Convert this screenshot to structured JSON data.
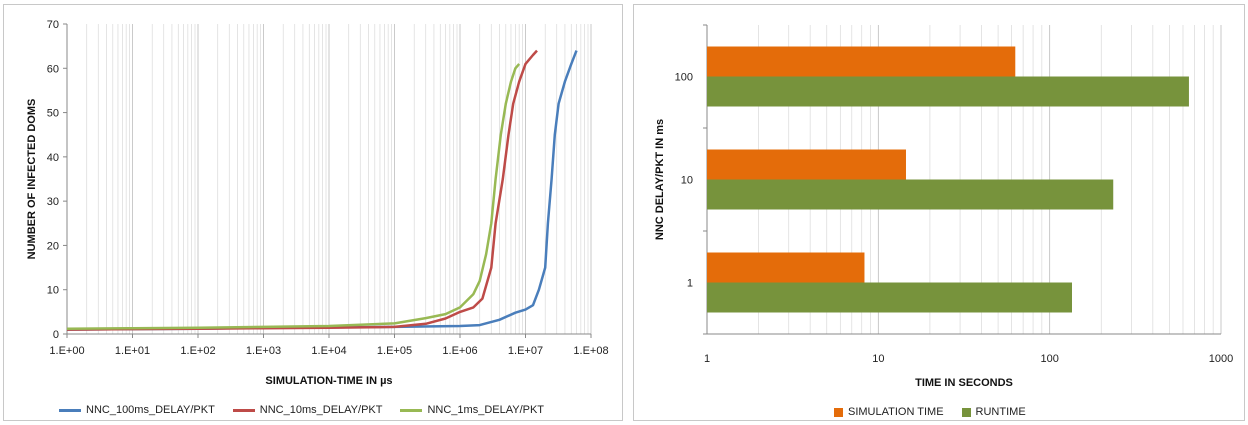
{
  "chart_data": [
    {
      "type": "line",
      "xscale": "log",
      "xlabel": "SIMULATION-TIME IN µs",
      "ylabel": "NUMBER OF INFECTED DOMS",
      "xlim": [
        1,
        100000000
      ],
      "ylim": [
        0,
        70
      ],
      "grid": "vertical minor/major (log)",
      "legend_position": "bottom",
      "x_ticks": [
        "1.E+00",
        "1.E+01",
        "1.E+02",
        "1.E+03",
        "1.E+04",
        "1.E+05",
        "1.E+06",
        "1.E+07",
        "1.E+08"
      ],
      "y_ticks": [
        "0",
        "10",
        "20",
        "30",
        "40",
        "50",
        "60",
        "70"
      ],
      "series": [
        {
          "name": "NNC_100ms_DELAY/PKT",
          "color": "#4a7ebb",
          "points": [
            [
              1,
              1
            ],
            [
              10,
              1.1
            ],
            [
              100,
              1.2
            ],
            [
              1000,
              1.4
            ],
            [
              10000,
              1.5
            ],
            [
              100000,
              1.6
            ],
            [
              1000000,
              1.8
            ],
            [
              2000000,
              2.0
            ],
            [
              4000000,
              3.2
            ],
            [
              7000000,
              4.8
            ],
            [
              10000000,
              5.5
            ],
            [
              13000000,
              6.5
            ],
            [
              16000000,
              10
            ],
            [
              20000000,
              15
            ],
            [
              22000000,
              25
            ],
            [
              25000000,
              35
            ],
            [
              28000000,
              45
            ],
            [
              32000000,
              52
            ],
            [
              40000000,
              57
            ],
            [
              50000000,
              61
            ],
            [
              60000000,
              64
            ]
          ]
        },
        {
          "name": "NNC_10ms_DELAY/PKT",
          "color": "#be4b48",
          "points": [
            [
              1,
              1
            ],
            [
              10,
              1.1
            ],
            [
              100,
              1.2
            ],
            [
              1000,
              1.3
            ],
            [
              10000,
              1.4
            ],
            [
              100000,
              1.6
            ],
            [
              300000,
              2.3
            ],
            [
              600000,
              3.5
            ],
            [
              1000000,
              5
            ],
            [
              1600000,
              6
            ],
            [
              2200000,
              8
            ],
            [
              3000000,
              15
            ],
            [
              3500000,
              25
            ],
            [
              4500000,
              35
            ],
            [
              5500000,
              45
            ],
            [
              6500000,
              52
            ],
            [
              8000000,
              57
            ],
            [
              10000000,
              61
            ],
            [
              13000000,
              63
            ],
            [
              15000000,
              64
            ]
          ]
        },
        {
          "name": "NNC_1ms_DELAY/PKT",
          "color": "#98b954",
          "points": [
            [
              1,
              1.2
            ],
            [
              10,
              1.3
            ],
            [
              100,
              1.4
            ],
            [
              1000,
              1.6
            ],
            [
              10000,
              1.8
            ],
            [
              100000,
              2.4
            ],
            [
              300000,
              3.6
            ],
            [
              600000,
              4.5
            ],
            [
              1000000,
              6
            ],
            [
              1600000,
              9
            ],
            [
              2000000,
              12
            ],
            [
              2500000,
              18
            ],
            [
              3000000,
              25
            ],
            [
              3500000,
              35
            ],
            [
              4200000,
              45
            ],
            [
              5000000,
              52
            ],
            [
              6000000,
              57
            ],
            [
              7000000,
              60
            ],
            [
              8000000,
              61
            ]
          ]
        }
      ]
    },
    {
      "type": "bar",
      "orientation": "horizontal",
      "xscale": "log",
      "xlabel": "TIME IN SECONDS",
      "ylabel": "NNC DELAY/PKT IN ms",
      "xlim": [
        1,
        1000
      ],
      "grid": "vertical minor/major (log)",
      "legend_position": "bottom",
      "x_ticks": [
        "1",
        "10",
        "100",
        "1000"
      ],
      "categories": [
        "1",
        "10",
        "100"
      ],
      "series": [
        {
          "name": "SIMULATION TIME",
          "color": "#e46c0a",
          "values": [
            8.3,
            14.5,
            63
          ]
        },
        {
          "name": "RUNTIME",
          "color": "#77933c",
          "values": [
            135,
            235,
            650
          ]
        }
      ]
    }
  ]
}
